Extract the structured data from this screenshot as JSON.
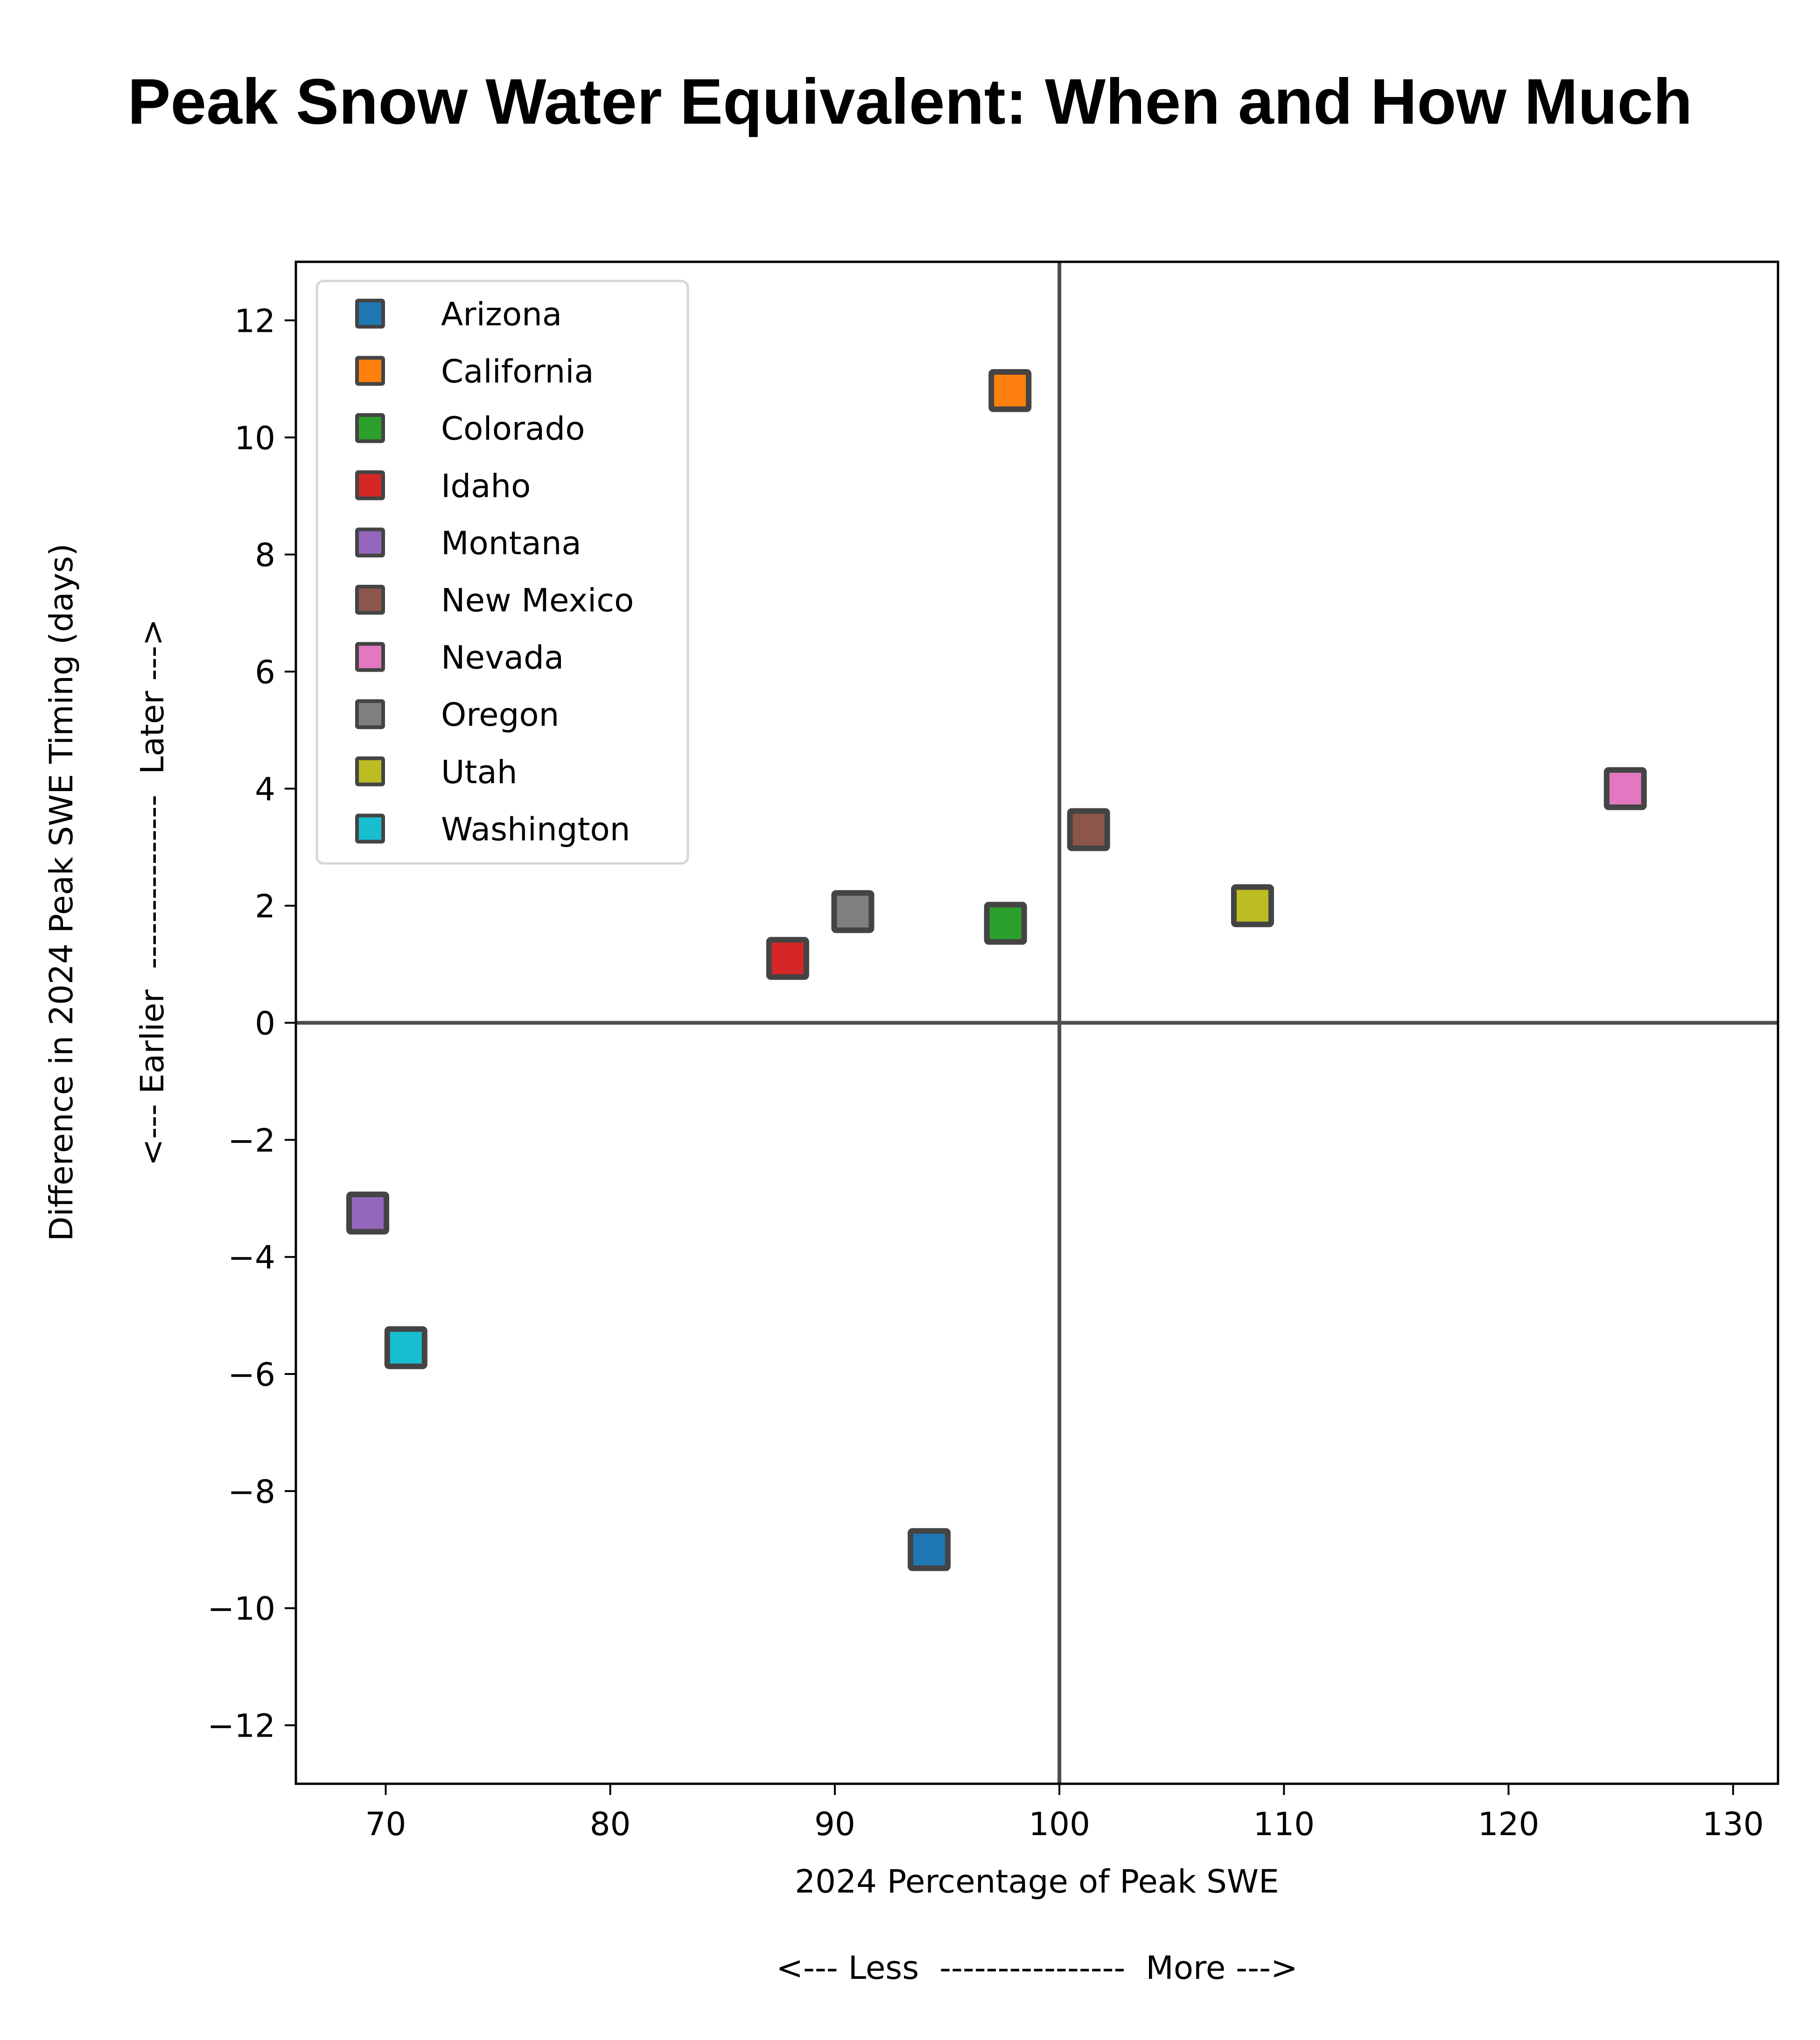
{
  "chart_data": {
    "type": "scatter",
    "title": "Peak Snow Water Equivalent: When and How Much",
    "xlabel": "2024 Percentage of Peak SWE",
    "xlabel_annotation": "<--- Less  ----------------  More --->",
    "ylabel": "Difference in 2024 Peak SWE Timing (days)",
    "ylabel_annotation": "<--- Earlier  ---------------  Later --->",
    "xlim": [
      66,
      132
    ],
    "ylim": [
      -13,
      13
    ],
    "xticks": [
      70,
      80,
      90,
      100,
      110,
      120,
      130
    ],
    "xtick_labels": [
      "70",
      "80",
      "90",
      "100",
      "110",
      "120",
      "130"
    ],
    "yticks": [
      12,
      10,
      8,
      6,
      4,
      2,
      0,
      -2,
      -4,
      -6,
      -8,
      -10,
      -12
    ],
    "ytick_labels": [
      "12",
      "10",
      "8",
      "6",
      "4",
      "2",
      "0",
      "−2",
      "−4",
      "−6",
      "−8",
      "−10",
      "−12"
    ],
    "reference_lines": {
      "x": 100,
      "y": 0,
      "color": "#4d4d4d"
    },
    "grid": false,
    "legend_position": "upper-left",
    "marker": "square",
    "marker_edge_color": "#444444",
    "series": [
      {
        "name": "Arizona",
        "color": "#1f77b4",
        "x": 94.2,
        "y": -9.0
      },
      {
        "name": "California",
        "color": "#ff7f0e",
        "x": 97.8,
        "y": 10.8
      },
      {
        "name": "Colorado",
        "color": "#2ca02c",
        "x": 97.6,
        "y": 1.7
      },
      {
        "name": "Idaho",
        "color": "#d62728",
        "x": 87.9,
        "y": 1.1
      },
      {
        "name": "Montana",
        "color": "#9467bd",
        "x": 69.2,
        "y": -3.25
      },
      {
        "name": "New Mexico",
        "color": "#8c564b",
        "x": 101.3,
        "y": 3.3
      },
      {
        "name": "Nevada",
        "color": "#e377c2",
        "x": 125.2,
        "y": 4.0
      },
      {
        "name": "Oregon",
        "color": "#7f7f7f",
        "x": 90.8,
        "y": 1.9
      },
      {
        "name": "Utah",
        "color": "#bcbd22",
        "x": 108.6,
        "y": 2.0
      },
      {
        "name": "Washington",
        "color": "#17becf",
        "x": 70.9,
        "y": -5.55
      }
    ]
  }
}
